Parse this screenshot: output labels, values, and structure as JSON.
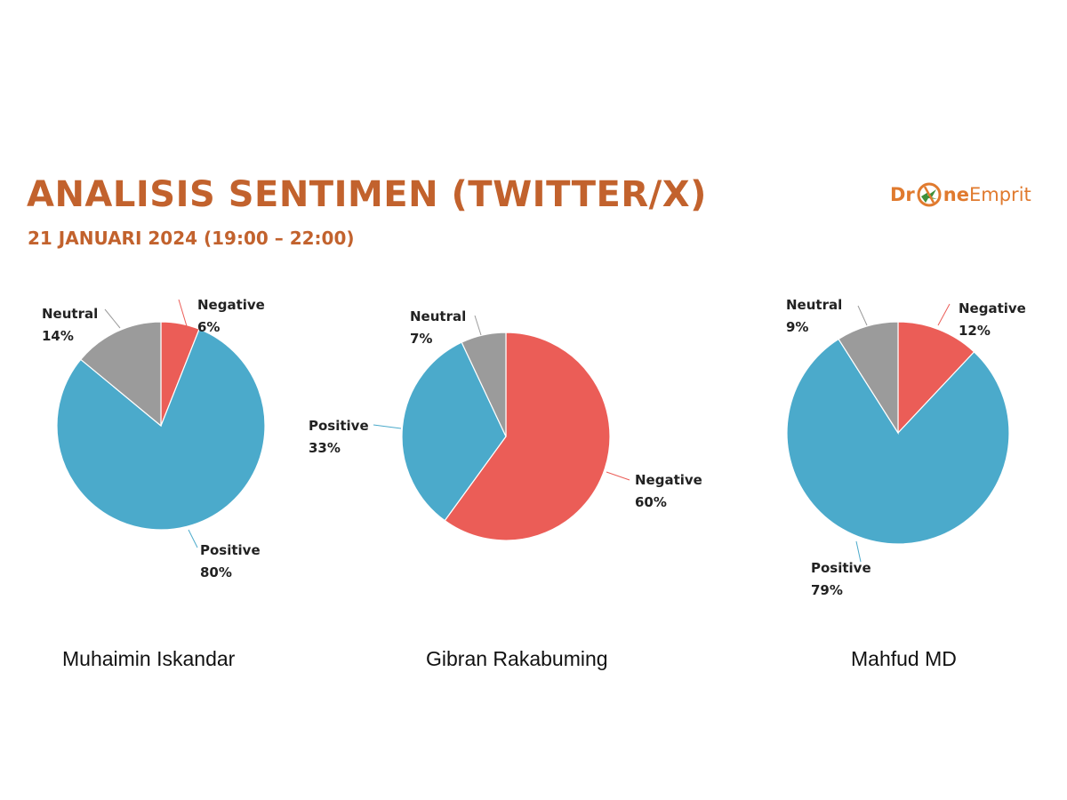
{
  "header": {
    "title": "ANALISIS SENTIMEN (TWITTER/X)",
    "subtitle": "21 JANUARI 2024 (19:00 – 22:00)",
    "accent_color": "#C2622D"
  },
  "logo": {
    "text_left": "Dr",
    "text_mid": "ne",
    "text_right": "Emprit",
    "icon": "drone-bird-icon"
  },
  "colors": {
    "Negative": "#EB5D57",
    "Positive": "#4BAACB",
    "Neutral": "#9B9B9B"
  },
  "chart_data": [
    {
      "type": "pie",
      "title": "Muhaimin Iskandar",
      "categories": [
        "Negative",
        "Positive",
        "Neutral"
      ],
      "values": [
        6,
        80,
        14
      ],
      "labels": [
        "6%",
        "80%",
        "14%"
      ]
    },
    {
      "type": "pie",
      "title": "Gibran Rakabuming",
      "categories": [
        "Negative",
        "Positive",
        "Neutral"
      ],
      "values": [
        60,
        33,
        7
      ],
      "labels": [
        "60%",
        "33%",
        "7%"
      ]
    },
    {
      "type": "pie",
      "title": "Mahfud MD",
      "categories": [
        "Negative",
        "Positive",
        "Neutral"
      ],
      "values": [
        12,
        79,
        9
      ],
      "labels": [
        "12%",
        "79%",
        "9%"
      ]
    }
  ]
}
